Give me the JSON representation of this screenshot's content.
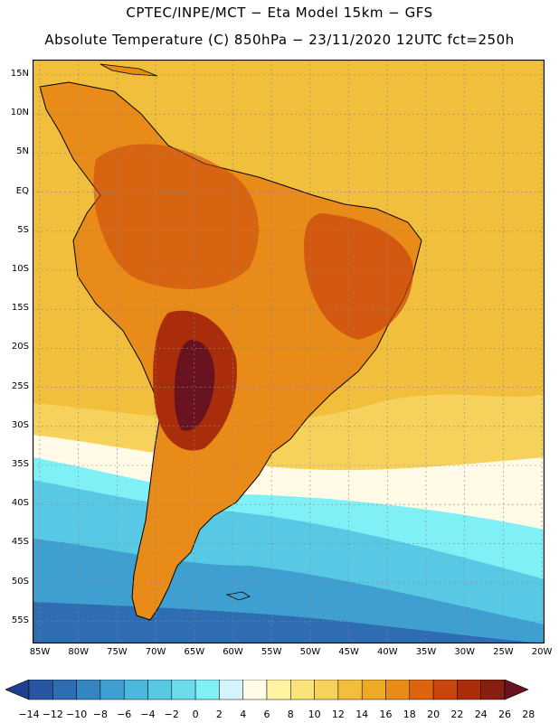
{
  "title_line_1": "CPTEC/INPE/MCT −  Eta Model 15km − GFS",
  "title_line_2": "Absolute Temperature (C) 850hPa − 23/11/2020 12UTC fct=250h",
  "lat_labels": [
    "15N",
    "10N",
    "5N",
    "EQ",
    "5S",
    "10S",
    "15S",
    "20S",
    "25S",
    "30S",
    "35S",
    "40S",
    "45S",
    "50S",
    "55S"
  ],
  "lon_labels": [
    "85W",
    "80W",
    "75W",
    "70W",
    "65W",
    "60W",
    "55W",
    "50W",
    "45W",
    "40W",
    "35W",
    "30W",
    "25W",
    "20W"
  ],
  "colorbar": {
    "ticks": [
      "−14",
      "−12",
      "−10",
      "−8",
      "−6",
      "−4",
      "−2",
      "0",
      "2",
      "4",
      "6",
      "8",
      "10",
      "12",
      "14",
      "16",
      "18",
      "20",
      "22",
      "24",
      "26",
      "28"
    ],
    "colors": [
      "#1f3f8f",
      "#2a55a2",
      "#2f6db3",
      "#3585c2",
      "#3e9fd0",
      "#4bb7dc",
      "#57c9e4",
      "#6cdcec",
      "#7ff0f6",
      "#d4f4fb",
      "#fffbe6",
      "#fdf3a0",
      "#fae47a",
      "#f6d25c",
      "#f2bf3d",
      "#eeaa22",
      "#e88b18",
      "#de6410",
      "#c9450b",
      "#a92d0a",
      "#862011",
      "#6a1320"
    ]
  },
  "map_colors": {
    "ocean_cold_deep": "#2f6db3",
    "ocean_cold": "#3e9fd0",
    "ocean_cool": "#57c9e4",
    "ocean_pale": "#7ff0f6",
    "ocean_near_zero": "#fffbe6",
    "ocean_warm": "#f6d25c",
    "ocean_warmer": "#f2bf3d",
    "land_base": "#e88b18",
    "land_hot": "#c9450b",
    "land_hotter": "#a92d0a",
    "land_hottest": "#6a1320"
  }
}
